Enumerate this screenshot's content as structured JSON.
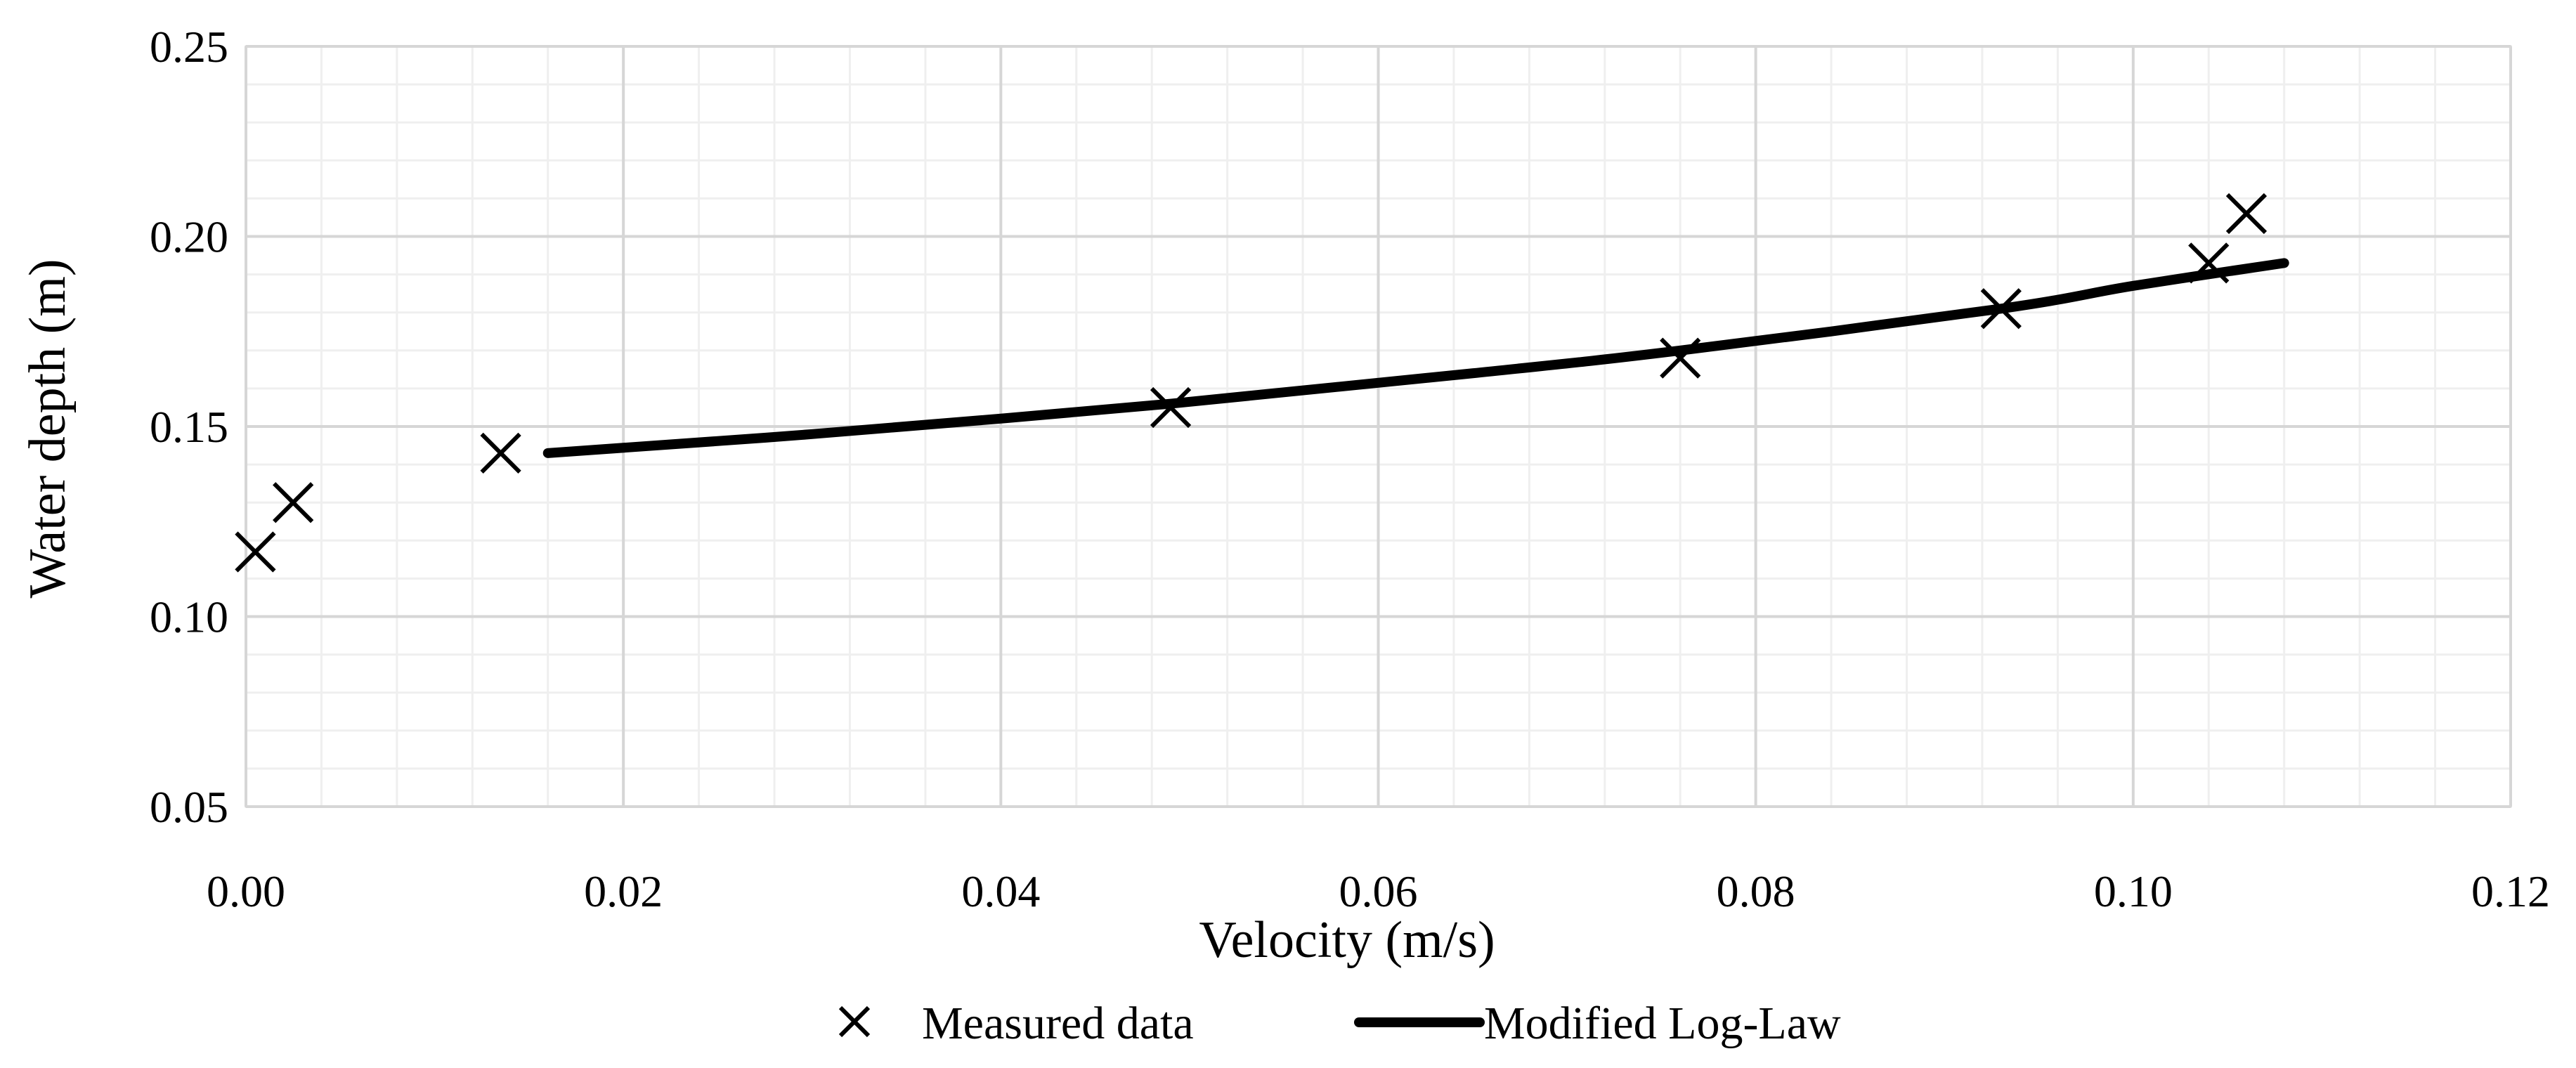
{
  "chart_data": {
    "type": "scatter",
    "title": "",
    "xlabel": "Velocity (m/s)",
    "ylabel": "Water depth (m)",
    "xlim": [
      0.0,
      0.12
    ],
    "ylim": [
      0.05,
      0.25
    ],
    "x_ticks": [
      0.0,
      0.02,
      0.04,
      0.06,
      0.08,
      0.1,
      0.12
    ],
    "x_tick_labels": [
      "0.00",
      "0.02",
      "0.04",
      "0.06",
      "0.08",
      "0.10",
      "0.12"
    ],
    "y_ticks": [
      0.05,
      0.1,
      0.15,
      0.2,
      0.25
    ],
    "y_tick_labels": [
      "0.05",
      "0.10",
      "0.15",
      "0.20",
      "0.25"
    ],
    "grid": true,
    "legend_position": "bottom-center",
    "series": [
      {
        "name": "Measured data",
        "kind": "markers",
        "marker": "x",
        "color": "#000000",
        "x": [
          0.0005,
          0.0025,
          0.0135,
          0.049,
          0.076,
          0.093,
          0.104,
          0.106
        ],
        "y": [
          0.117,
          0.13,
          0.143,
          0.155,
          0.168,
          0.181,
          0.193,
          0.206
        ]
      },
      {
        "name": "Modified Log-Law",
        "kind": "line",
        "color": "#000000",
        "x": [
          0.016,
          0.03,
          0.049,
          0.065,
          0.076,
          0.093,
          0.1,
          0.108
        ],
        "y": [
          0.143,
          0.148,
          0.156,
          0.164,
          0.17,
          0.181,
          0.187,
          0.193
        ]
      }
    ]
  }
}
